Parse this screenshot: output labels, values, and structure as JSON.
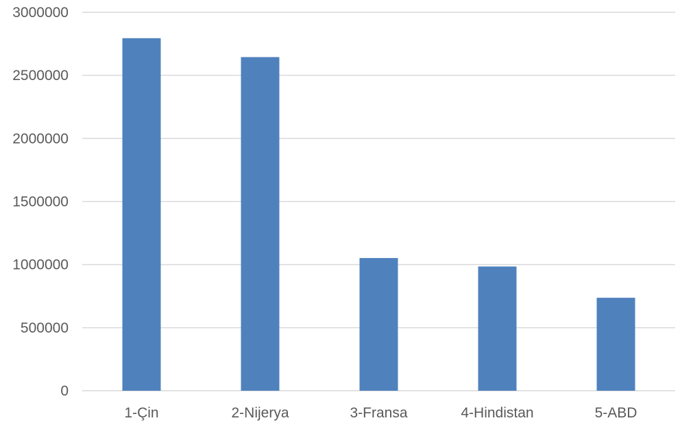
{
  "chart_data": {
    "type": "bar",
    "categories": [
      "1-Çin",
      "2-Nijerya",
      "3-Fransa",
      "4-Hindistan",
      "5-ABD"
    ],
    "values": [
      2795000,
      2645000,
      1052000,
      985000,
      737000
    ],
    "ylim": [
      0,
      3000000
    ],
    "yticks": [
      "0",
      "500000",
      "1000000",
      "1500000",
      "2000000",
      "2500000",
      "3000000"
    ],
    "ytick_values": [
      0,
      500000,
      1000000,
      1500000,
      2000000,
      2500000,
      3000000
    ],
    "grid": true,
    "colors": {
      "bar": "#4f81bd",
      "grid": "#d9d9d9",
      "text": "#595959"
    }
  }
}
